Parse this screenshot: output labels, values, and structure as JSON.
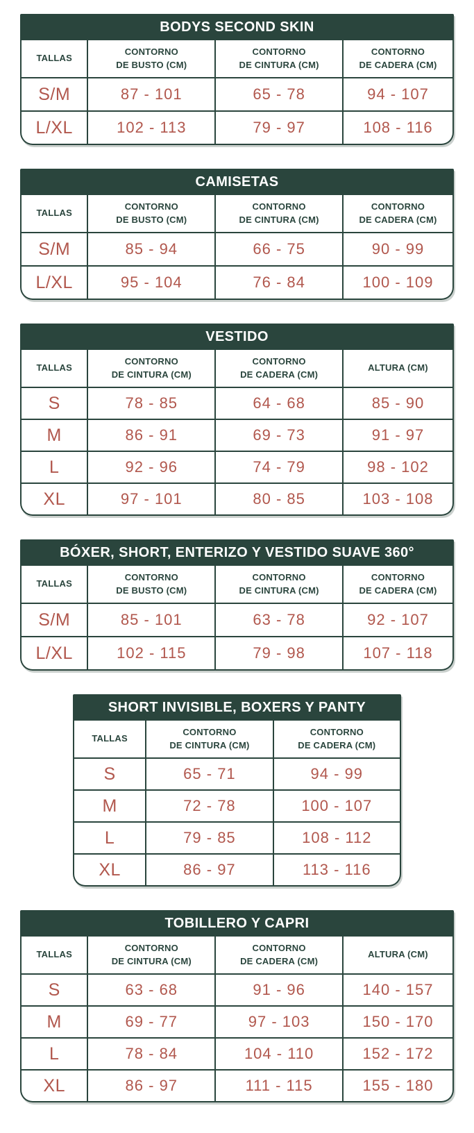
{
  "colors": {
    "theme_green": "#2A453D",
    "value_red": "#B1574D",
    "title_text": "#FFFFFF",
    "background": "#FFFFFF"
  },
  "tables": [
    {
      "title": "BODYS SECOND SKIN",
      "layout": "wide",
      "columns": [
        "TALLAS",
        "CONTORNO\nDE BUSTO (CM)",
        "CONTORNO\nDE CINTURA (CM)",
        "CONTORNO\nDE CADERA (CM)"
      ],
      "rows": [
        {
          "size": "S/M",
          "values": [
            "87 - 101",
            "65 - 78",
            "94 - 107"
          ]
        },
        {
          "size": "L/XL",
          "values": [
            "102 - 113",
            "79 - 97",
            "108 - 116"
          ]
        }
      ]
    },
    {
      "title": "CAMISETAS",
      "layout": "wide",
      "columns": [
        "TALLAS",
        "CONTORNO\nDE BUSTO (CM)",
        "CONTORNO\nDE CINTURA (CM)",
        "CONTORNO\nDE CADERA (CM)"
      ],
      "rows": [
        {
          "size": "S/M",
          "values": [
            "85 - 94",
            "66 - 75",
            "90 - 99"
          ]
        },
        {
          "size": "L/XL",
          "values": [
            "95 - 104",
            "76 - 84",
            "100 - 109"
          ]
        }
      ]
    },
    {
      "title": "VESTIDO",
      "layout": "wide",
      "columns": [
        "TALLAS",
        "CONTORNO\nDE CINTURA (CM)",
        "CONTORNO\nDE CADERA (CM)",
        "ALTURA (CM)"
      ],
      "rows": [
        {
          "size": "S",
          "values": [
            "78 - 85",
            "64 - 68",
            "85 - 90"
          ]
        },
        {
          "size": "M",
          "values": [
            "86 - 91",
            "69 - 73",
            "91 - 97"
          ]
        },
        {
          "size": "L",
          "values": [
            "92 - 96",
            "74 - 79",
            "98 - 102"
          ]
        },
        {
          "size": "XL",
          "values": [
            "97 - 101",
            "80 - 85",
            "103 - 108"
          ]
        }
      ]
    },
    {
      "title": "BÓXER, SHORT, ENTERIZO Y VESTIDO SUAVE 360°",
      "layout": "wide",
      "columns": [
        "TALLAS",
        "CONTORNO\nDE BUSTO (CM)",
        "CONTORNO\nDE CINTURA (CM)",
        "CONTORNO\nDE CADERA (CM)"
      ],
      "rows": [
        {
          "size": "S/M",
          "values": [
            "85 - 101",
            "63 - 78",
            "92 - 107"
          ]
        },
        {
          "size": "L/XL",
          "values": [
            "102 - 115",
            "79 - 98",
            "107 - 118"
          ]
        }
      ]
    },
    {
      "title": "SHORT INVISIBLE, BOXERS Y PANTY",
      "layout": "narrow",
      "columns": [
        "TALLAS",
        "CONTORNO\nDE CINTURA (CM)",
        "CONTORNO\nDE CADERA (CM)"
      ],
      "rows": [
        {
          "size": "S",
          "values": [
            "65 - 71",
            "94 - 99"
          ]
        },
        {
          "size": "M",
          "values": [
            "72 - 78",
            "100 - 107"
          ]
        },
        {
          "size": "L",
          "values": [
            "79 - 85",
            "108 - 112"
          ]
        },
        {
          "size": "XL",
          "values": [
            "86 - 97",
            "113 - 116"
          ]
        }
      ]
    },
    {
      "title": "TOBILLERO Y CAPRI",
      "layout": "wide",
      "columns": [
        "TALLAS",
        "CONTORNO\nDE CINTURA (CM)",
        "CONTORNO\nDE CADERA (CM)",
        "ALTURA (CM)"
      ],
      "rows": [
        {
          "size": "S",
          "values": [
            "63 - 68",
            "91 - 96",
            "140 - 157"
          ]
        },
        {
          "size": "M",
          "values": [
            "69 - 77",
            "97 - 103",
            "150 - 170"
          ]
        },
        {
          "size": "L",
          "values": [
            "78 - 84",
            "104 - 110",
            "152 - 172"
          ]
        },
        {
          "size": "XL",
          "values": [
            "86 - 97",
            "111 - 115",
            "155 - 180"
          ]
        }
      ]
    }
  ]
}
